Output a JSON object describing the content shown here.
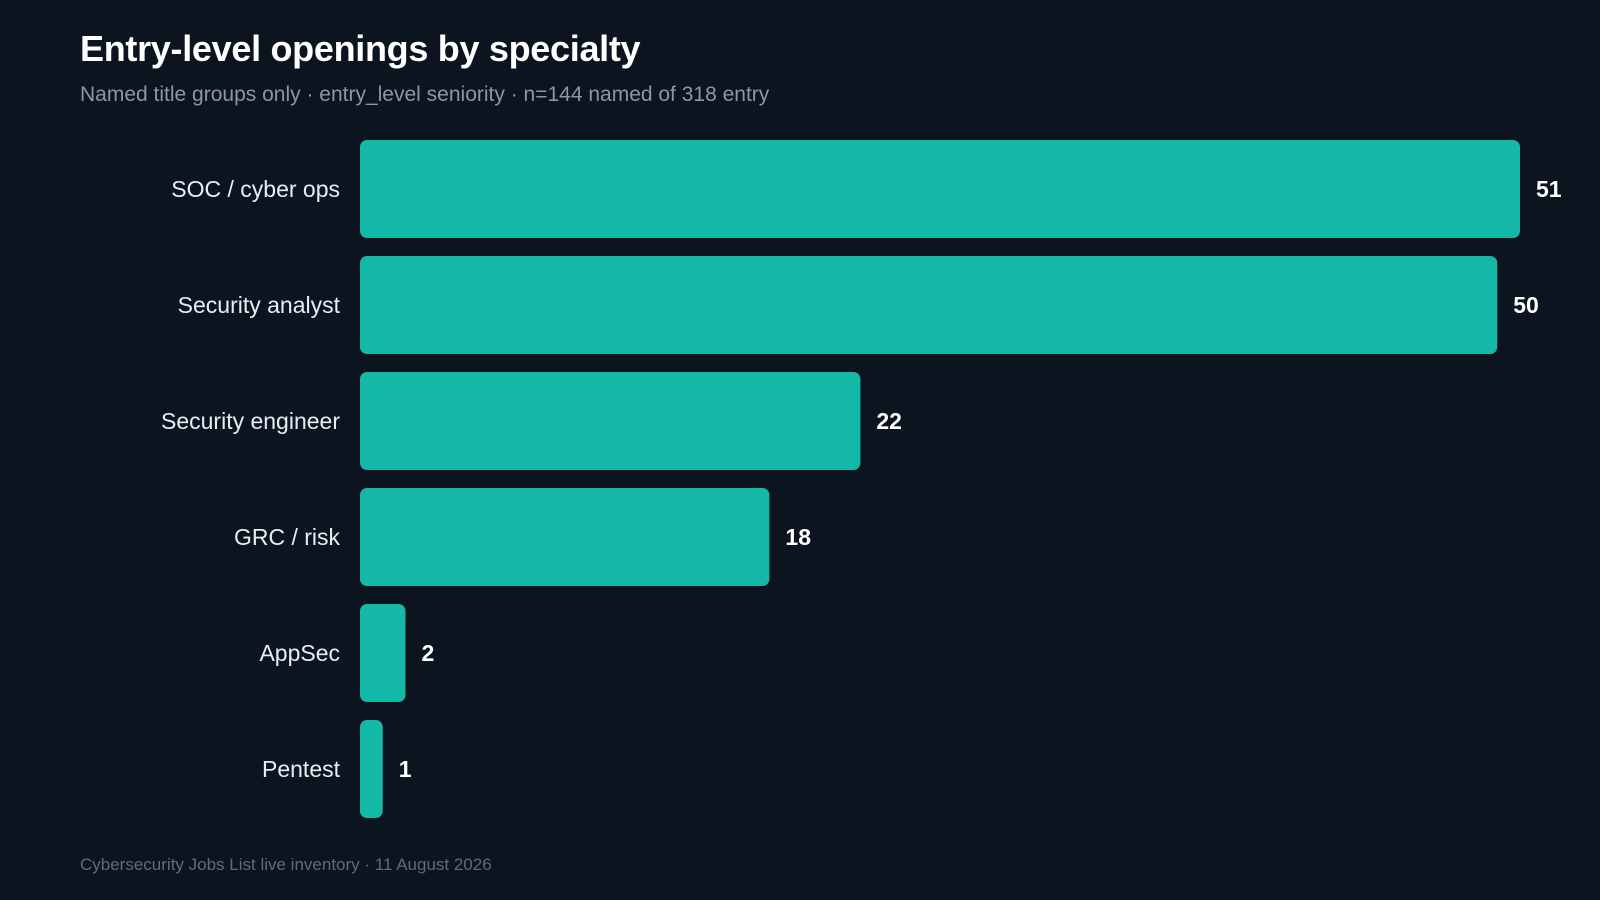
{
  "title": "Entry-level openings by specialty",
  "subtitle": "Named title groups only · entry_level seniority · n=144 named of 318 entry",
  "footer": "Cybersecurity Jobs List live inventory · 11 August 2026",
  "colors": {
    "background": "#0c1420",
    "bar": "#14b8a6"
  },
  "chart_data": {
    "type": "bar",
    "orientation": "horizontal",
    "categories": [
      "SOC / cyber ops",
      "Security analyst",
      "Security engineer",
      "GRC / risk",
      "AppSec",
      "Pentest"
    ],
    "values": [
      51,
      50,
      22,
      18,
      2,
      1
    ],
    "title": "Entry-level openings by specialty",
    "subtitle": "Named title groups only · entry_level seniority · n=144 named of 318 entry",
    "xlabel": "",
    "ylabel": "",
    "grid": false,
    "data_labels": true
  }
}
